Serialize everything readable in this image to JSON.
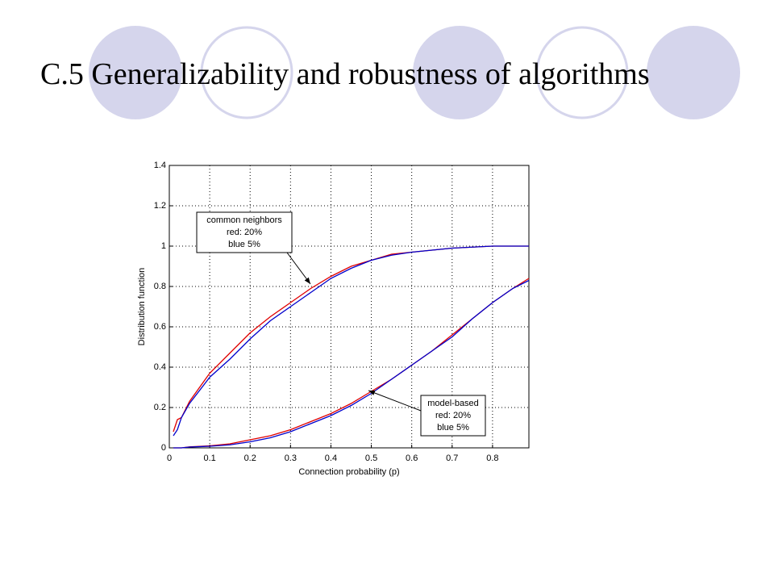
{
  "slide_title": "C.5 Generalizability and robustness of algorithms",
  "chart_data": {
    "type": "line",
    "x_label": "Connection probability (p)",
    "y_label": "Distribution function",
    "xlim": [
      0,
      0.89
    ],
    "ylim": [
      0,
      1.4
    ],
    "xticks": [
      0,
      0.1,
      0.2,
      0.3,
      0.4,
      0.5,
      0.6,
      0.7,
      0.8
    ],
    "yticks": [
      0,
      0.2,
      0.4,
      0.6,
      0.8,
      1,
      1.2,
      1.4
    ],
    "grid": true,
    "x": [
      0.01,
      0.02,
      0.03,
      0.05,
      0.1,
      0.15,
      0.2,
      0.25,
      0.3,
      0.35,
      0.4,
      0.45,
      0.5,
      0.55,
      0.6,
      0.65,
      0.7,
      0.75,
      0.8,
      0.85,
      0.89
    ],
    "series": [
      {
        "color": "#e00000",
        "values": [
          0.08,
          0.14,
          0.15,
          0.23,
          0.37,
          0.47,
          0.57,
          0.65,
          0.72,
          0.79,
          0.85,
          0.9,
          0.93,
          0.96,
          0.97,
          0.98,
          0.99,
          0.995,
          1,
          1,
          1
        ]
      },
      {
        "color": "#0000cc",
        "values": [
          0.06,
          0.09,
          0.15,
          0.22,
          0.35,
          0.44,
          0.54,
          0.63,
          0.7,
          0.77,
          0.84,
          0.89,
          0.93,
          0.955,
          0.97,
          0.98,
          0.99,
          0.995,
          1,
          1,
          1
        ]
      },
      {
        "color": "#e00000",
        "values": [
          0,
          0,
          0,
          0.005,
          0.01,
          0.02,
          0.04,
          0.06,
          0.09,
          0.13,
          0.17,
          0.22,
          0.28,
          0.34,
          0.41,
          0.48,
          0.56,
          0.64,
          0.72,
          0.79,
          0.84
        ]
      },
      {
        "color": "#0000cc",
        "values": [
          0,
          0,
          0,
          0.004,
          0.008,
          0.015,
          0.03,
          0.05,
          0.08,
          0.12,
          0.16,
          0.21,
          0.27,
          0.34,
          0.41,
          0.48,
          0.55,
          0.64,
          0.72,
          0.79,
          0.83
        ]
      }
    ],
    "annotations": [
      {
        "lines": [
          "common neighbors",
          "red: 20%",
          "blue 5%"
        ]
      },
      {
        "lines": [
          "model-based",
          "red: 20%",
          "blue 5%"
        ]
      }
    ]
  }
}
